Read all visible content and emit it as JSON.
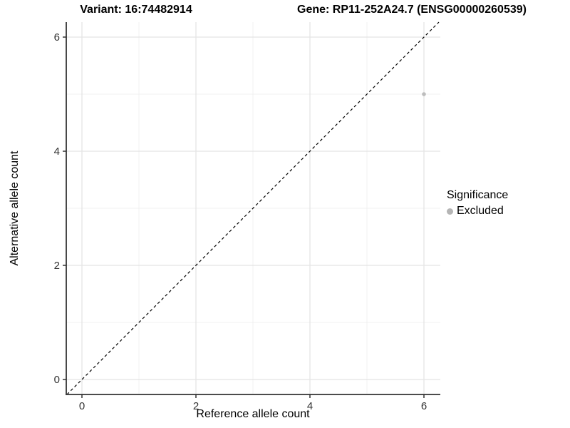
{
  "chart_data": {
    "type": "scatter",
    "titles": {
      "left": "Variant: 16:74482914",
      "right": "Gene: RP11-252A24.7 (ENSG00000260539)"
    },
    "xlabel": "Reference allele count",
    "ylabel": "Alternative allele count",
    "xlim": [
      -0.275,
      6.2875
    ],
    "ylim": [
      -0.2625,
      6.2625
    ],
    "x_major_ticks": [
      0,
      2,
      4,
      6
    ],
    "y_major_ticks": [
      0,
      2,
      4,
      6
    ],
    "x_minor_ticks": [
      1,
      3,
      5
    ],
    "y_minor_ticks": [
      1,
      3,
      5
    ],
    "grid": true,
    "identity_line": {
      "style": "dashed",
      "equation": "y = x",
      "color": "#000000"
    },
    "series": [
      {
        "name": "Excluded",
        "color": "#bdbdbd",
        "point_radius": 2.8,
        "points": [
          {
            "x": 6,
            "y": 5
          }
        ]
      }
    ],
    "legend": {
      "title": "Significance",
      "position": "right",
      "entries": [
        {
          "label": "Excluded",
          "color": "#b5b5b5"
        }
      ]
    },
    "colors": {
      "background": "#ffffff",
      "grid_major": "#e4e4e4",
      "grid_minor": "#f1f1f1",
      "axis_line": "#333333",
      "tick_label": "#333333",
      "title_text": "#000000"
    }
  }
}
